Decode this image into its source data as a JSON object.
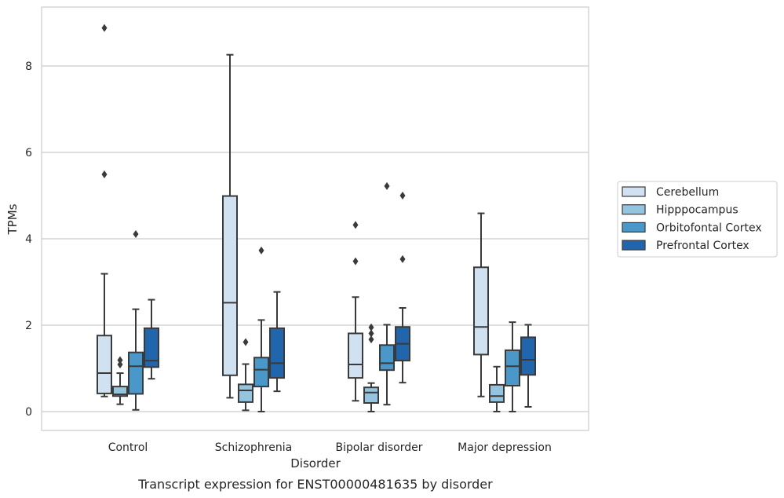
{
  "chart_data": {
    "type": "box",
    "title": "",
    "caption": "Transcript expression for ENST00000481635 by disorder",
    "xlabel": "Disorder",
    "ylabel": "TPMs",
    "ylim": [
      -0.4,
      9.35
    ],
    "yticks": [
      0,
      2,
      4,
      6,
      8
    ],
    "grid": "horizontal",
    "legend_position": "right",
    "categories": [
      "Control",
      "Schizophrenia",
      "Bipolar disorder",
      "Major depression"
    ],
    "series": [
      {
        "name": "Cerebellum",
        "color": "#d0e1f2",
        "boxes": [
          {
            "whislo": 0.35,
            "q1": 0.42,
            "med": 0.89,
            "q3": 1.76,
            "whishi": 3.19,
            "fliers": [
              5.49,
              8.88
            ]
          },
          {
            "whislo": 0.32,
            "q1": 0.84,
            "med": 2.52,
            "q3": 4.99,
            "whishi": 8.26,
            "fliers": []
          },
          {
            "whislo": 0.25,
            "q1": 0.78,
            "med": 1.09,
            "q3": 1.81,
            "whishi": 2.65,
            "fliers": [
              3.48,
              4.32
            ]
          },
          {
            "whislo": 0.35,
            "q1": 1.32,
            "med": 1.96,
            "q3": 3.34,
            "whishi": 4.59,
            "fliers": []
          }
        ]
      },
      {
        "name": "Hipppocampus",
        "color": "#94c4df",
        "boxes": [
          {
            "whislo": 0.17,
            "q1": 0.36,
            "med": 0.4,
            "q3": 0.58,
            "whishi": 0.89,
            "fliers": [
              1.09,
              1.19
            ]
          },
          {
            "whislo": 0.03,
            "q1": 0.22,
            "med": 0.49,
            "q3": 0.63,
            "whishi": 1.1,
            "fliers": [
              1.61
            ]
          },
          {
            "whislo": 0.0,
            "q1": 0.2,
            "med": 0.44,
            "q3": 0.56,
            "whishi": 0.66,
            "fliers": [
              1.67,
              1.81,
              1.95
            ]
          },
          {
            "whislo": 0.0,
            "q1": 0.22,
            "med": 0.36,
            "q3": 0.62,
            "whishi": 1.04,
            "fliers": []
          }
        ]
      },
      {
        "name": "Orbitofontal Cortex",
        "color": "#4a98c9",
        "boxes": [
          {
            "whislo": 0.04,
            "q1": 0.41,
            "med": 1.05,
            "q3": 1.37,
            "whishi": 2.37,
            "fliers": [
              4.11
            ]
          },
          {
            "whislo": 0.0,
            "q1": 0.58,
            "med": 0.97,
            "q3": 1.25,
            "whishi": 2.12,
            "fliers": [
              3.73
            ]
          },
          {
            "whislo": 0.16,
            "q1": 0.96,
            "med": 1.12,
            "q3": 1.54,
            "whishi": 2.01,
            "fliers": [
              5.22
            ]
          },
          {
            "whislo": 0.0,
            "q1": 0.6,
            "med": 1.05,
            "q3": 1.42,
            "whishi": 2.07,
            "fliers": []
          }
        ]
      },
      {
        "name": "Prefrontal Cortex",
        "color": "#2166ac",
        "boxes": [
          {
            "whislo": 0.76,
            "q1": 1.03,
            "med": 1.18,
            "q3": 1.93,
            "whishi": 2.59,
            "fliers": []
          },
          {
            "whislo": 0.47,
            "q1": 0.78,
            "med": 1.12,
            "q3": 1.93,
            "whishi": 2.77,
            "fliers": []
          },
          {
            "whislo": 0.67,
            "q1": 1.18,
            "med": 1.57,
            "q3": 1.96,
            "whishi": 2.4,
            "fliers": [
              3.53,
              5.0
            ]
          },
          {
            "whislo": 0.11,
            "q1": 0.85,
            "med": 1.2,
            "q3": 1.72,
            "whishi": 2.01,
            "fliers": []
          }
        ]
      }
    ]
  }
}
